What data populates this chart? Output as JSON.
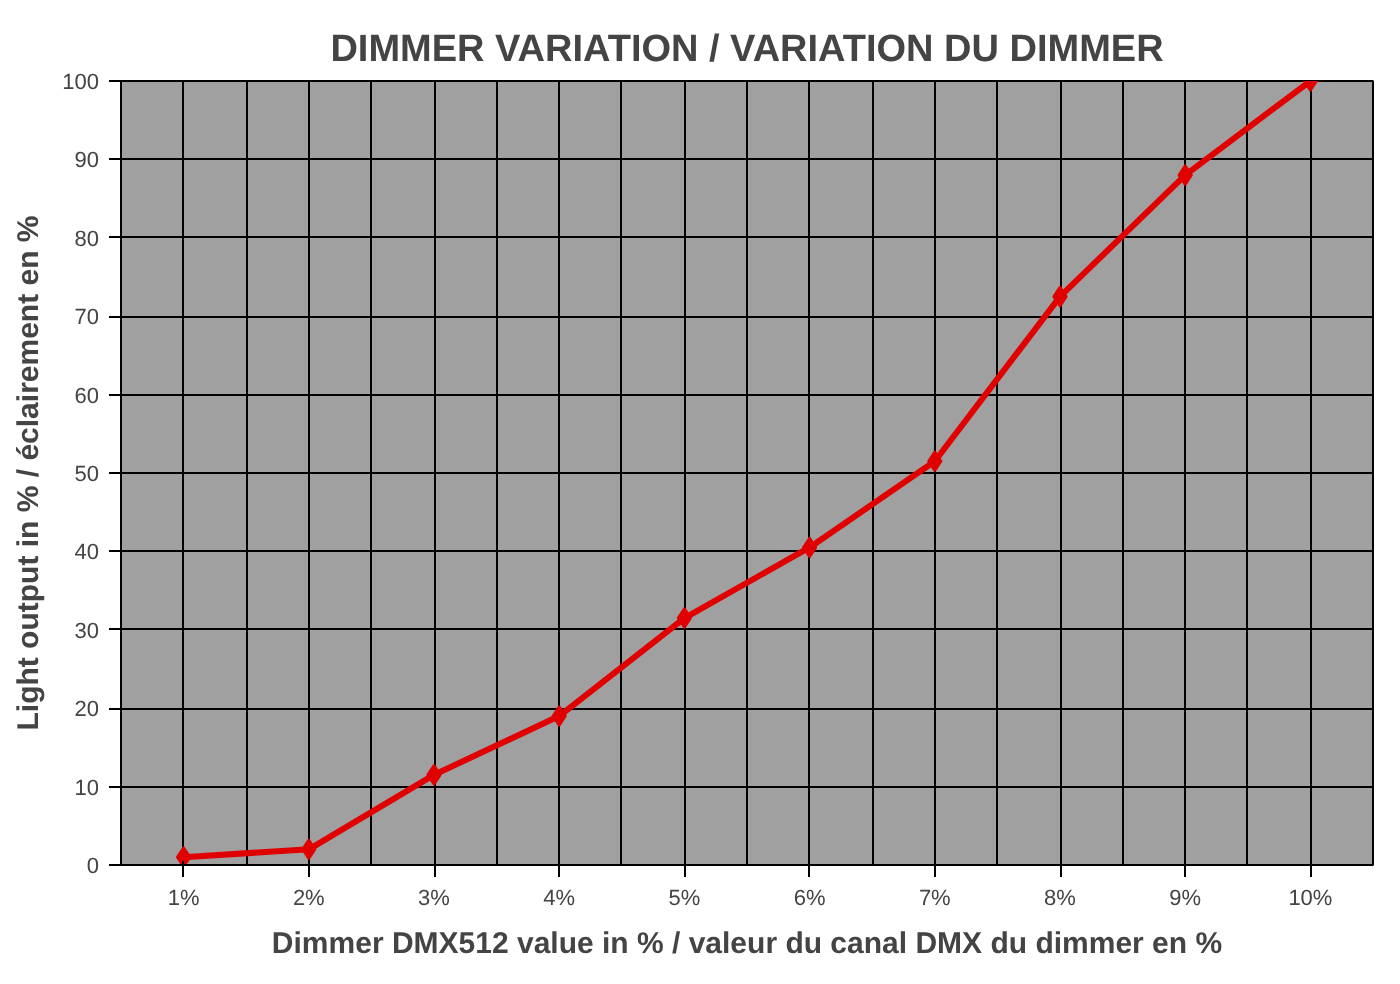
{
  "chart_data": {
    "type": "line",
    "title": "DIMMER VARIATION / VARIATION DU DIMMER",
    "xlabel": "Dimmer DMX512 value in % / valeur du canal DMX du dimmer en %",
    "ylabel": "Light output in % / éclairement en %",
    "categories": [
      "1%",
      "2%",
      "3%",
      "4%",
      "5%",
      "6%",
      "7%",
      "8%",
      "9%",
      "10%"
    ],
    "series": [
      {
        "color": "#e00000",
        "values": [
          1,
          2,
          11.5,
          19,
          31.5,
          40.5,
          51.5,
          72.5,
          88,
          100
        ]
      }
    ],
    "ylim": [
      0,
      100
    ],
    "yticks": [
      0,
      10,
      20,
      30,
      40,
      50,
      60,
      70,
      80,
      90,
      100
    ],
    "grid": true,
    "marker": "diamond",
    "line_style": "solid"
  }
}
